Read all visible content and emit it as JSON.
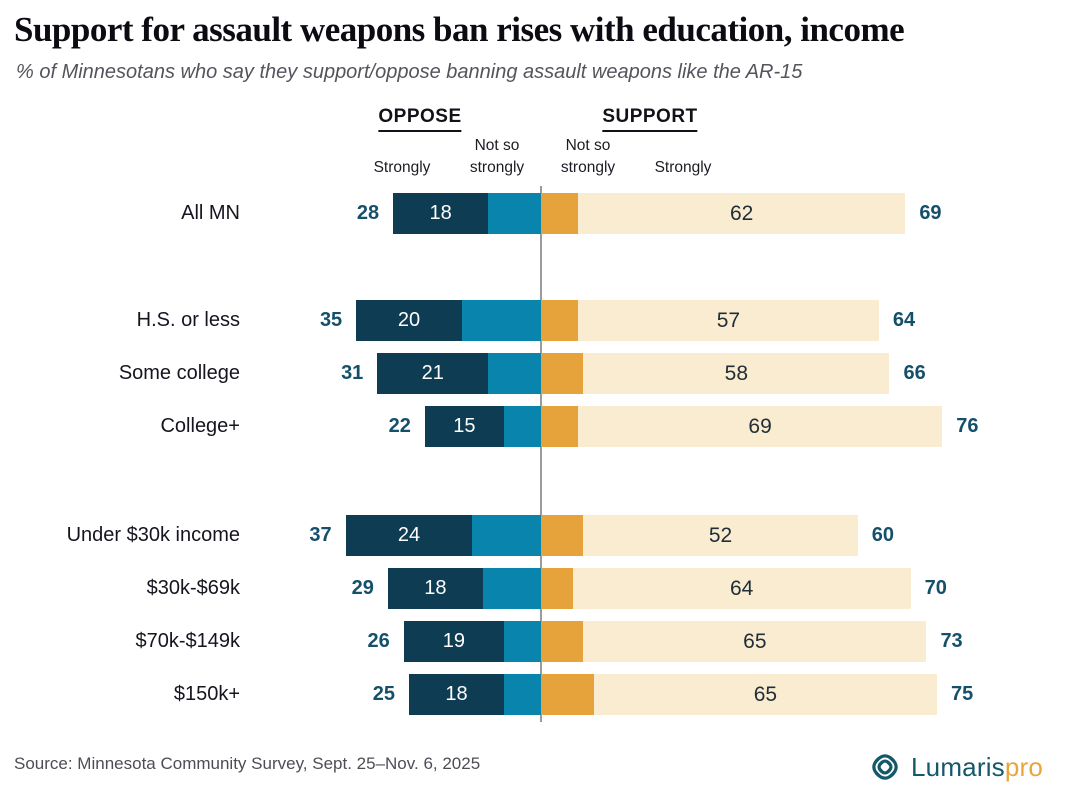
{
  "title": "Support for assault weapons ban rises with education, income",
  "subtitle": "% of Minnesotans who say they support/oppose banning assault weapons like the AR-15",
  "header": {
    "oppose_label": "OPPOSE",
    "support_label": "SUPPORT",
    "oppose_strongly_label": "Strongly",
    "oppose_not_so_label": "Not so strongly",
    "support_not_so_label": "Not so strongly",
    "support_strongly_label": "Strongly"
  },
  "chart_data": {
    "type": "bar",
    "subtype": "diverging-stacked-horizontal",
    "unit": "percent",
    "title": "Support for assault weapons ban rises with education, income",
    "xlabel": "",
    "ylabel": "",
    "legend_position": "top",
    "grid": false,
    "categories": [
      "All MN",
      "H.S. or less",
      "Some college",
      "College+",
      "Under $30k income",
      "$30k-$69k",
      "$70k-$149k",
      "$150k+"
    ],
    "series": [
      {
        "name": "Oppose strongly",
        "values": [
          18,
          20,
          21,
          15,
          24,
          18,
          19,
          18
        ]
      },
      {
        "name": "Oppose not so strongly",
        "values": [
          10,
          15,
          10,
          7,
          13,
          11,
          7,
          7
        ]
      },
      {
        "name": "Support not so strongly",
        "values": [
          7,
          7,
          8,
          7,
          8,
          6,
          8,
          10
        ]
      },
      {
        "name": "Support strongly",
        "values": [
          62,
          57,
          58,
          69,
          52,
          64,
          65,
          65
        ]
      }
    ],
    "rows": [
      {
        "label": "All MN",
        "group": "all",
        "oppose_total": 28,
        "oppose_strongly": 18,
        "support_strongly": 62,
        "support_total": 69
      },
      {
        "label": "H.S. or less",
        "group": "education",
        "oppose_total": 35,
        "oppose_strongly": 20,
        "support_strongly": 57,
        "support_total": 64
      },
      {
        "label": "Some college",
        "group": "education",
        "oppose_total": 31,
        "oppose_strongly": 21,
        "support_strongly": 58,
        "support_total": 66
      },
      {
        "label": "College+",
        "group": "education",
        "oppose_total": 22,
        "oppose_strongly": 15,
        "support_strongly": 69,
        "support_total": 76
      },
      {
        "label": "Under $30k income",
        "group": "income",
        "oppose_total": 37,
        "oppose_strongly": 24,
        "support_strongly": 52,
        "support_total": 60
      },
      {
        "label": "$30k-$69k",
        "group": "income",
        "oppose_total": 29,
        "oppose_strongly": 18,
        "support_strongly": 64,
        "support_total": 70
      },
      {
        "label": "$70k-$149k",
        "group": "income",
        "oppose_total": 26,
        "oppose_strongly": 19,
        "support_strongly": 65,
        "support_total": 73
      },
      {
        "label": "$150k+",
        "group": "income",
        "oppose_total": 25,
        "oppose_strongly": 18,
        "support_strongly": 65,
        "support_total": 75
      }
    ],
    "colors": {
      "oppose_strongly": "#0d3c53",
      "oppose_not_so": "#0884ad",
      "support_not_so": "#e7a33b",
      "support_strongly": "#f9ecd0",
      "total_text": "#15506b",
      "center_line": "#9b9b9b"
    }
  },
  "footer": {
    "source": "Source: Minnesota Community Survey, Sept. 25–Nov. 6, 2025",
    "logo_brand": "Lumaris",
    "logo_suffix": "pro"
  }
}
